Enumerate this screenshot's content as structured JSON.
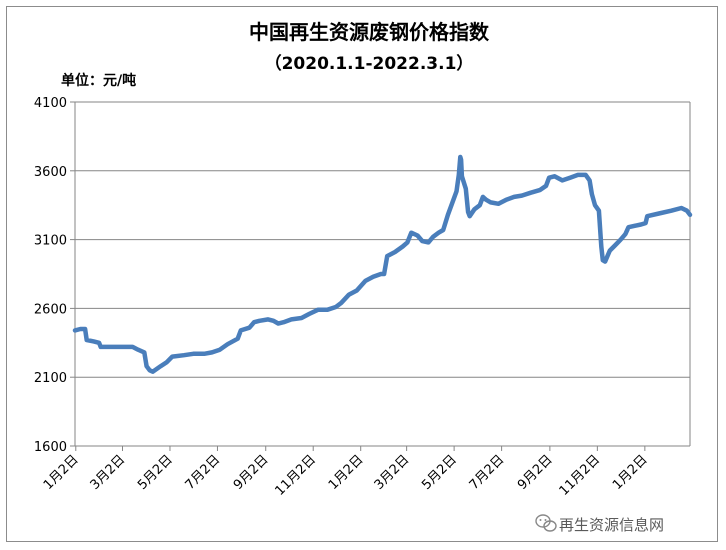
{
  "chart_data": {
    "type": "line",
    "title": "中国再生资源废钢价格指数",
    "subtitle": "（2020.1.1-2022.3.1）",
    "unit_label": "单位：元/吨",
    "ylim": [
      1600,
      4100
    ],
    "yticks": [
      1600,
      2100,
      2600,
      3100,
      3600,
      4100
    ],
    "grid": true,
    "xlim": [
      "2020-01-01",
      "2022-03-01"
    ],
    "xtick_labels": [
      "1月2日",
      "3月2日",
      "5月2日",
      "7月2日",
      "9月2日",
      "11月2日",
      "1月2日",
      "3月2日",
      "5月2日",
      "7月2日",
      "9月2日",
      "11月2日",
      "1月2日"
    ],
    "xtick_dates": [
      "2020-01-02",
      "2020-03-02",
      "2020-05-02",
      "2020-07-02",
      "2020-09-02",
      "2020-11-02",
      "2021-01-02",
      "2021-03-02",
      "2021-05-02",
      "2021-07-02",
      "2021-09-02",
      "2021-11-02",
      "2022-01-02"
    ],
    "color": "#4a7ebb",
    "series": [
      {
        "name": "",
        "points": [
          [
            "2020-01-01",
            2440
          ],
          [
            "2020-01-08",
            2450
          ],
          [
            "2020-01-14",
            2450
          ],
          [
            "2020-01-16",
            2370
          ],
          [
            "2020-01-25",
            2360
          ],
          [
            "2020-02-01",
            2350
          ],
          [
            "2020-02-03",
            2320
          ],
          [
            "2020-03-01",
            2320
          ],
          [
            "2020-03-15",
            2320
          ],
          [
            "2020-03-22",
            2300
          ],
          [
            "2020-03-30",
            2280
          ],
          [
            "2020-04-02",
            2180
          ],
          [
            "2020-04-06",
            2150
          ],
          [
            "2020-04-10",
            2140
          ],
          [
            "2020-04-15",
            2160
          ],
          [
            "2020-04-20",
            2180
          ],
          [
            "2020-04-28",
            2210
          ],
          [
            "2020-05-05",
            2250
          ],
          [
            "2020-05-20",
            2260
          ],
          [
            "2020-06-01",
            2270
          ],
          [
            "2020-06-15",
            2270
          ],
          [
            "2020-06-25",
            2280
          ],
          [
            "2020-07-05",
            2300
          ],
          [
            "2020-07-15",
            2340
          ],
          [
            "2020-07-28",
            2380
          ],
          [
            "2020-08-01",
            2440
          ],
          [
            "2020-08-12",
            2460
          ],
          [
            "2020-08-18",
            2500
          ],
          [
            "2020-08-25",
            2510
          ],
          [
            "2020-09-05",
            2520
          ],
          [
            "2020-09-12",
            2510
          ],
          [
            "2020-09-18",
            2490
          ],
          [
            "2020-09-25",
            2500
          ],
          [
            "2020-10-05",
            2520
          ],
          [
            "2020-10-18",
            2530
          ],
          [
            "2020-10-28",
            2560
          ],
          [
            "2020-11-08",
            2590
          ],
          [
            "2020-11-20",
            2590
          ],
          [
            "2020-12-01",
            2610
          ],
          [
            "2020-12-08",
            2640
          ],
          [
            "2020-12-18",
            2700
          ],
          [
            "2020-12-28",
            2730
          ],
          [
            "2021-01-08",
            2800
          ],
          [
            "2021-01-18",
            2830
          ],
          [
            "2021-01-28",
            2850
          ],
          [
            "2021-02-01",
            2850
          ],
          [
            "2021-02-05",
            2980
          ],
          [
            "2021-02-15",
            3010
          ],
          [
            "2021-02-25",
            3050
          ],
          [
            "2021-03-03",
            3080
          ],
          [
            "2021-03-08",
            3150
          ],
          [
            "2021-03-16",
            3130
          ],
          [
            "2021-03-22",
            3090
          ],
          [
            "2021-03-30",
            3080
          ],
          [
            "2021-04-05",
            3120
          ],
          [
            "2021-04-12",
            3150
          ],
          [
            "2021-04-18",
            3170
          ],
          [
            "2021-04-24",
            3280
          ],
          [
            "2021-05-05",
            3450
          ],
          [
            "2021-05-08",
            3570
          ],
          [
            "2021-05-10",
            3700
          ],
          [
            "2021-05-11",
            3680
          ],
          [
            "2021-05-12",
            3560
          ],
          [
            "2021-05-17",
            3470
          ],
          [
            "2021-05-20",
            3300
          ],
          [
            "2021-05-22",
            3270
          ],
          [
            "2021-05-28",
            3320
          ],
          [
            "2021-06-04",
            3350
          ],
          [
            "2021-06-08",
            3410
          ],
          [
            "2021-06-12",
            3390
          ],
          [
            "2021-06-18",
            3370
          ],
          [
            "2021-06-28",
            3360
          ],
          [
            "2021-07-08",
            3390
          ],
          [
            "2021-07-18",
            3410
          ],
          [
            "2021-07-28",
            3420
          ],
          [
            "2021-08-08",
            3440
          ],
          [
            "2021-08-20",
            3460
          ],
          [
            "2021-08-28",
            3490
          ],
          [
            "2021-09-01",
            3550
          ],
          [
            "2021-09-08",
            3560
          ],
          [
            "2021-09-18",
            3530
          ],
          [
            "2021-09-28",
            3550
          ],
          [
            "2021-10-08",
            3570
          ],
          [
            "2021-10-18",
            3570
          ],
          [
            "2021-10-23",
            3530
          ],
          [
            "2021-10-26",
            3430
          ],
          [
            "2021-10-30",
            3350
          ],
          [
            "2021-11-04",
            3310
          ],
          [
            "2021-11-07",
            3050
          ],
          [
            "2021-11-09",
            2950
          ],
          [
            "2021-11-12",
            2940
          ],
          [
            "2021-11-18",
            3020
          ],
          [
            "2021-11-25",
            3060
          ],
          [
            "2021-12-02",
            3100
          ],
          [
            "2021-12-08",
            3140
          ],
          [
            "2021-12-12",
            3190
          ],
          [
            "2021-12-20",
            3200
          ],
          [
            "2021-12-28",
            3210
          ],
          [
            "2022-01-03",
            3220
          ],
          [
            "2022-01-05",
            3270
          ],
          [
            "2022-01-20",
            3290
          ],
          [
            "2022-02-05",
            3310
          ],
          [
            "2022-02-18",
            3330
          ],
          [
            "2022-02-25",
            3310
          ],
          [
            "2022-03-01",
            3280
          ]
        ]
      }
    ]
  },
  "watermark": {
    "icon": "wechat-icon",
    "text": "再生资源信息网"
  }
}
